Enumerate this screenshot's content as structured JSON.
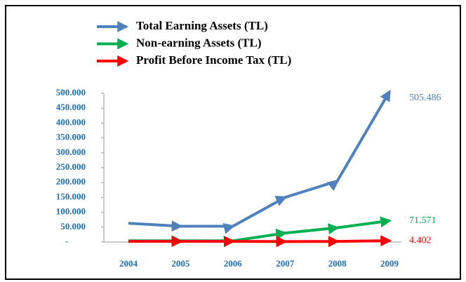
{
  "chart_data": {
    "type": "line",
    "categories": [
      "2004",
      "2005",
      "2006",
      "2007",
      "2008",
      "2009"
    ],
    "series": [
      {
        "name": "Total Earning Assets (TL)",
        "color": "#4f81bd",
        "values": [
          63000,
          53000,
          53000,
          150000,
          205000,
          505486
        ],
        "value_labels": [
          null,
          null,
          null,
          null,
          null,
          "505.486"
        ]
      },
      {
        "name": "Non-earning Assets (TL)",
        "color": "#00b050",
        "values": [
          4000,
          4000,
          4000,
          30000,
          48000,
          71571
        ],
        "value_labels": [
          null,
          null,
          null,
          null,
          null,
          "71.571"
        ]
      },
      {
        "name": "Profit Before Income Tax (TL)",
        "color": "#ff0000",
        "values": [
          2000,
          2000,
          2000,
          1500,
          2000,
          4402
        ],
        "value_labels": [
          null,
          null,
          null,
          null,
          null,
          "4.402"
        ]
      }
    ],
    "ylim": [
      0,
      500000
    ],
    "yticks": [
      {
        "value": 0,
        "label": "-"
      },
      {
        "value": 50000,
        "label": "50.000"
      },
      {
        "value": 100000,
        "label": "100.000"
      },
      {
        "value": 150000,
        "label": "150.000"
      },
      {
        "value": 200000,
        "label": "200.000"
      },
      {
        "value": 250000,
        "label": "250.000"
      },
      {
        "value": 300000,
        "label": "300.000"
      },
      {
        "value": 350000,
        "label": "350.000"
      },
      {
        "value": 400000,
        "label": "400.000"
      },
      {
        "value": 450000,
        "label": "450.000"
      },
      {
        "value": 500000,
        "label": "500.000"
      }
    ],
    "legend": "top"
  }
}
